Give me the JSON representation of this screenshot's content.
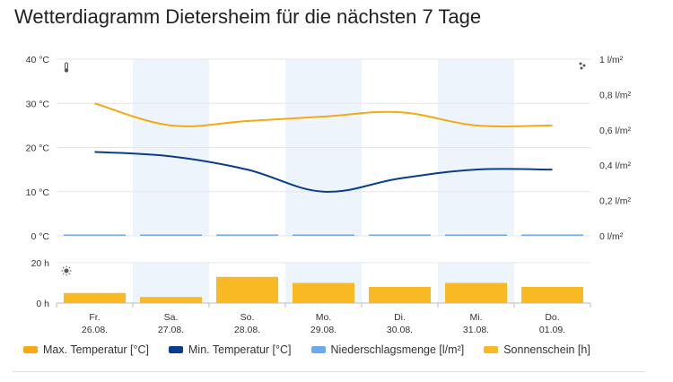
{
  "title": "Wetterdiagramm Dietersheim für die nächsten 7 Tage",
  "colors": {
    "max_temp": "#f5a914",
    "min_temp": "#0b3d8c",
    "precip": "#6aa9ea",
    "sunshine": "#f8b923",
    "band": "#eef4fc",
    "grid": "#e6e6e6"
  },
  "icons": {
    "temperature": "thermometer-icon",
    "precipitation": "raindrops-icon",
    "sunshine": "sun-icon"
  },
  "chart_data": {
    "type": "line",
    "categories": [
      "Fr.",
      "Sa.",
      "So.",
      "Mo.",
      "Di.",
      "Mi.",
      "Do."
    ],
    "dates": [
      "26.08.",
      "27.08.",
      "28.08.",
      "29.08.",
      "30.08.",
      "31.08.",
      "01.09."
    ],
    "temperature_axis": {
      "ylim": [
        0,
        40
      ],
      "ticks": [
        0,
        10,
        20,
        30,
        40
      ],
      "tick_labels": [
        "0 °C",
        "10 °C",
        "20 °C",
        "30 °C",
        "40 °C"
      ]
    },
    "precipitation_axis": {
      "ylim": [
        0,
        1
      ],
      "ticks": [
        0,
        0.2,
        0.4,
        0.6,
        0.8,
        1
      ],
      "tick_labels": [
        "0 l/m²",
        "0,2 l/m²",
        "0,4 l/m²",
        "0,6 l/m²",
        "0,8 l/m²",
        "1 l/m²"
      ]
    },
    "sunshine_axis": {
      "ylim": [
        0,
        20
      ],
      "ticks": [
        0,
        20
      ],
      "tick_labels": [
        "0 h",
        "20 h"
      ]
    },
    "series": [
      {
        "name": "Max. Temperatur [°C]",
        "type": "line",
        "values": [
          30,
          25,
          26,
          27,
          28,
          25,
          25
        ]
      },
      {
        "name": "Min. Temperatur [°C]",
        "type": "line",
        "values": [
          19,
          18,
          15,
          10,
          13,
          15,
          15
        ]
      },
      {
        "name": "Niederschlagsmenge [l/m²]",
        "type": "bar",
        "values": [
          0,
          0,
          0,
          0,
          0,
          0,
          0
        ]
      },
      {
        "name": "Sonnenschein [h]",
        "type": "bar",
        "values": [
          5,
          3,
          13,
          10,
          8,
          10,
          8
        ]
      }
    ],
    "grid": true,
    "legend_position": "bottom-left"
  }
}
